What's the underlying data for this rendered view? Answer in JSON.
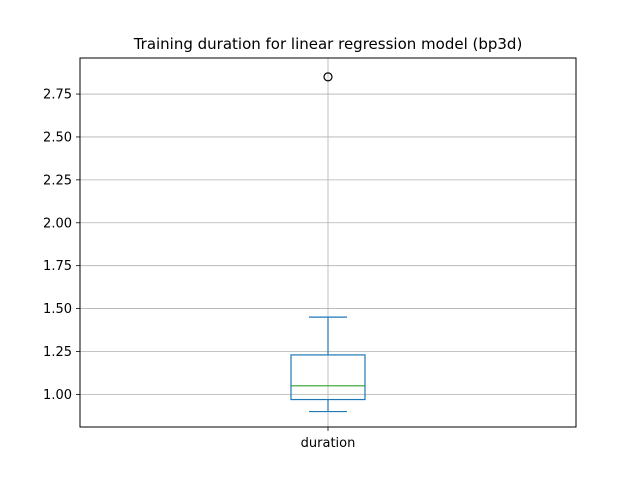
{
  "chart_data": {
    "type": "box",
    "title": "Training duration for linear regression model (bp3d)",
    "xlabel": "",
    "ylabel": "",
    "categories": [
      "duration"
    ],
    "boxes": [
      {
        "category": "duration",
        "whisker_low": 0.9,
        "q1": 0.97,
        "median": 1.05,
        "q3": 1.23,
        "whisker_high": 1.45,
        "outliers": [
          2.85
        ]
      }
    ],
    "ylim": [
      0.81,
      2.96
    ],
    "yticks": [
      1.0,
      1.25,
      1.5,
      1.75,
      2.0,
      2.25,
      2.5,
      2.75
    ],
    "ytick_labels": [
      "1.00",
      "1.25",
      "1.50",
      "1.75",
      "2.00",
      "2.25",
      "2.50",
      "2.75"
    ],
    "grid": true,
    "legend": "none",
    "colors": {
      "box": "#1f77b4",
      "median": "#2ca02c",
      "grid": "#b0b0b0",
      "outlier_edge": "#000000"
    }
  }
}
